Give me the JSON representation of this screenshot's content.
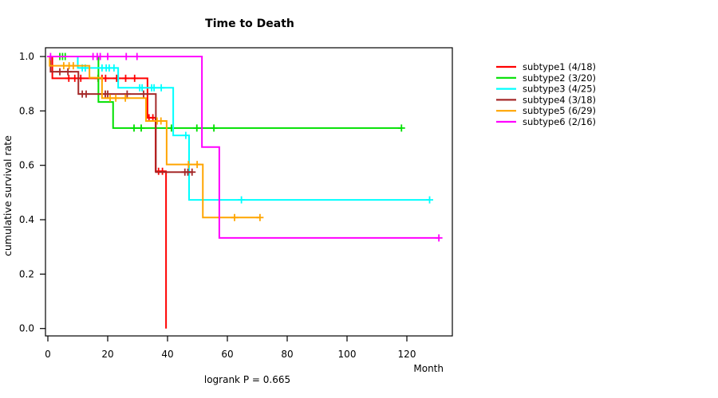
{
  "chart_data": {
    "type": "line",
    "subtype_km": "kaplan-meier-step",
    "title": "Time to Death",
    "xlabel": "Month",
    "ylabel": "cumulative survival rate",
    "footnote": "logrank P = 0.665",
    "x_tick_values": [
      0,
      20,
      40,
      60,
      80,
      100,
      120
    ],
    "x_tick_labels": [
      "0",
      "20",
      "40",
      "60",
      "80",
      "100",
      "120"
    ],
    "y_tick_values": [
      0.0,
      0.2,
      0.4,
      0.6,
      0.8,
      1.0
    ],
    "y_tick_labels": [
      "0.0",
      "0.2",
      "0.4",
      "0.6",
      "0.8",
      "1.0"
    ],
    "xlim": [
      0,
      135
    ],
    "ylim": [
      0,
      1
    ],
    "grid": "off",
    "legend_position": "right-outside",
    "series": [
      {
        "name": "subtype1",
        "label": "subtype1 (4/18)",
        "color": "#FF0000",
        "start": [
          0,
          1.0
        ],
        "steps": [
          [
            1.5,
            0.92
          ],
          [
            33.3,
            0.775
          ],
          [
            36.0,
            0.578
          ],
          [
            39.5,
            0.0
          ]
        ],
        "censor_times": [
          7,
          9,
          11,
          16.8,
          18.1,
          19.3,
          23,
          26,
          29,
          33.8,
          35.1,
          37,
          38.3
        ],
        "end": 39.5
      },
      {
        "name": "subtype2",
        "label": "subtype2 (3/20)",
        "color": "#00E000",
        "start": [
          0,
          1.0
        ],
        "steps": [
          [
            16.9,
            0.833
          ],
          [
            21.8,
            0.737
          ]
        ],
        "censor_times": [
          4,
          4.9,
          5.8,
          28.8,
          31.2,
          41.3,
          49.8,
          55.5,
          118.2
        ],
        "end": 118.2
      },
      {
        "name": "subtype3",
        "label": "subtype3 (4/25)",
        "color": "#00FFFF",
        "start": [
          0,
          1.0
        ],
        "steps": [
          [
            10,
            0.958
          ],
          [
            23.5,
            0.885
          ],
          [
            41.9,
            0.71
          ],
          [
            47.2,
            0.473
          ]
        ],
        "censor_times": [
          11.5,
          12.5,
          18.1,
          19.5,
          20.5,
          22.1,
          30.7,
          31.5,
          34.7,
          35.5,
          37.9,
          46.1,
          64.7,
          127.6
        ],
        "end": 127.6
      },
      {
        "name": "subtype4",
        "label": "subtype4 (3/18)",
        "color": "#A52A2A",
        "start": [
          0,
          1.0
        ],
        "steps": [
          [
            0.9,
            0.944
          ],
          [
            10.2,
            0.862
          ],
          [
            36.1,
            0.575
          ]
        ],
        "censor_times": [
          4,
          6.7,
          11.5,
          12.8,
          19.2,
          20,
          26.5,
          32,
          45.8,
          46.8,
          48.2
        ],
        "end": 48.5
      },
      {
        "name": "subtype5",
        "label": "subtype5 (6/29)",
        "color": "#FFA500",
        "start": [
          0,
          1.0
        ],
        "steps": [
          [
            0.6,
            0.966
          ],
          [
            13.9,
            0.922
          ],
          [
            18.1,
            0.847
          ],
          [
            32.8,
            0.763
          ],
          [
            39.7,
            0.603
          ],
          [
            51.8,
            0.408
          ]
        ],
        "censor_times": [
          5.3,
          7.1,
          8.5,
          20.8,
          22.7,
          25.9,
          36.5,
          37.8,
          47,
          49.9,
          62.4,
          70.9
        ],
        "end": 70.9
      },
      {
        "name": "subtype6",
        "label": "subtype6 (2/16)",
        "color": "#FF00FF",
        "start": [
          0,
          1.0
        ],
        "steps": [
          [
            51.5,
            0.667
          ],
          [
            57.3,
            0.333
          ]
        ],
        "censor_times": [
          0.9,
          15.1,
          16.5,
          17.5,
          20,
          26.2,
          29.8,
          130.7
        ],
        "end": 130.7
      }
    ]
  }
}
